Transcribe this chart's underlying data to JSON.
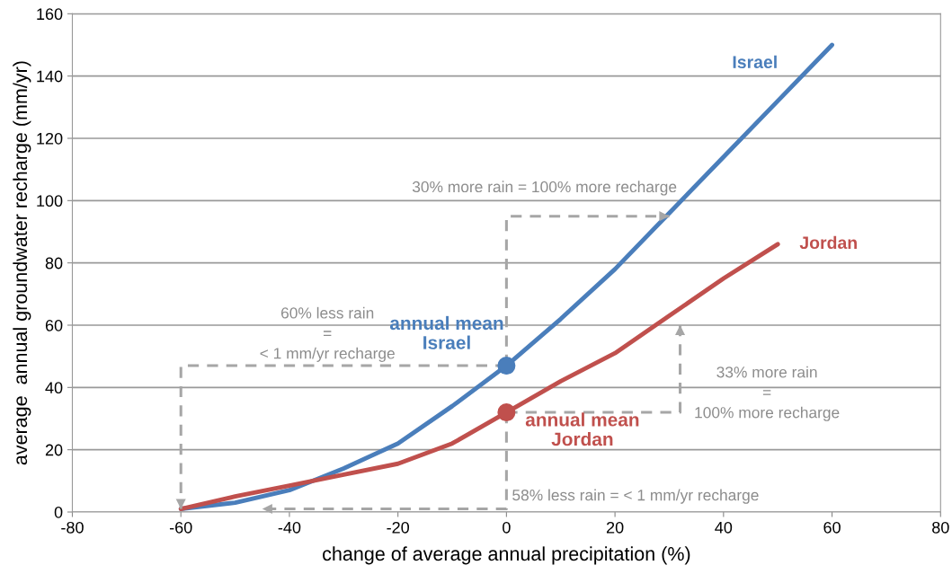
{
  "chart_data": {
    "type": "line",
    "xlabel": "change of average annual precipitation (%)",
    "ylabel": "average  annual groundwater recharge (mm/yr)",
    "xlim": [
      -80,
      80
    ],
    "xticks": [
      -80,
      -60,
      -40,
      -20,
      0,
      20,
      40,
      60,
      80
    ],
    "ylim": [
      0,
      160
    ],
    "yticks": [
      0,
      20,
      40,
      60,
      80,
      100,
      120,
      140,
      160
    ],
    "grid": "y",
    "series": [
      {
        "name": "Israel",
        "color": "#4a7ebb",
        "x": [
          -60,
          -50,
          -40,
          -30,
          -20,
          -10,
          0,
          10,
          20,
          30,
          40,
          50,
          60
        ],
        "values": [
          1,
          3,
          7,
          14,
          22,
          34,
          47,
          62,
          78,
          96,
          114,
          132,
          150
        ]
      },
      {
        "name": "Jordan",
        "color": "#c0504d",
        "x": [
          -60,
          -50,
          -40,
          -30,
          -20,
          -10,
          0,
          10,
          20,
          30,
          40,
          50
        ],
        "values": [
          1,
          5,
          8.5,
          12,
          15.5,
          22,
          32,
          42,
          51,
          63,
          75,
          86
        ]
      },
      {
        "type": "scatter",
        "marker": "circle",
        "color": "#4a7ebb",
        "x": [
          0
        ],
        "values": [
          47
        ]
      },
      {
        "type": "scatter",
        "marker": "circle",
        "color": "#c0504d",
        "x": [
          0
        ],
        "values": [
          32
        ]
      }
    ],
    "annotations": [
      {
        "text": "annual mean\nIsrael",
        "x": 0,
        "y": 47
      },
      {
        "text": "annual mean\nJordan",
        "x": 0,
        "y": 32
      },
      {
        "text": "30% more rain = 100% more recharge",
        "x": 30,
        "y": 95
      },
      {
        "text": "60% less rain\n=\n< 1 mm/yr recharge",
        "x": -60,
        "y": 1
      },
      "33% more rain\n=\n100% more recharge",
      "58% less rain = < 1 mm/yr recharge"
    ]
  }
}
